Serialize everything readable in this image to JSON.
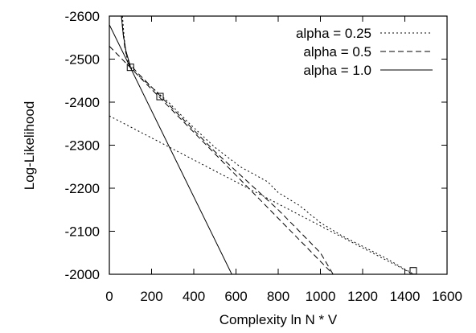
{
  "chart_data": {
    "type": "line",
    "xlabel": "Complexity ln N * V",
    "ylabel": "Log-Likelihood",
    "xlim": [
      0,
      1600
    ],
    "ylim": [
      -2000,
      -2600
    ],
    "xticks": [
      "0",
      "200",
      "400",
      "600",
      "800",
      "1000",
      "1200",
      "1400",
      "1600"
    ],
    "yticks": [
      "-2600",
      "-2500",
      "-2400",
      "-2300",
      "-2200",
      "-2100",
      "-2000"
    ],
    "legend_position": "top-right",
    "series": [
      {
        "name": "alpha = 0.25",
        "dash": "2,3",
        "curve": [
          [
            62,
            -2600
          ],
          [
            70,
            -2550
          ],
          [
            80,
            -2510
          ],
          [
            95,
            -2485
          ],
          [
            130,
            -2465
          ],
          [
            200,
            -2435
          ],
          [
            280,
            -2400
          ],
          [
            380,
            -2350
          ],
          [
            500,
            -2295
          ],
          [
            620,
            -2250
          ],
          [
            750,
            -2215
          ],
          [
            800,
            -2190
          ],
          [
            900,
            -2160
          ],
          [
            1000,
            -2120
          ],
          [
            1100,
            -2090
          ],
          [
            1200,
            -2065
          ],
          [
            1300,
            -2040
          ],
          [
            1400,
            -2012
          ],
          [
            1460,
            -1995
          ]
        ],
        "tangent": [
          [
            0,
            -2368
          ],
          [
            1460,
            -1995
          ]
        ],
        "marker": [
          1440,
          -2008
        ]
      },
      {
        "name": "alpha = 0.5",
        "dash": "7,4",
        "curve": [
          [
            58,
            -2600
          ],
          [
            65,
            -2560
          ],
          [
            75,
            -2520
          ],
          [
            95,
            -2490
          ],
          [
            130,
            -2470
          ],
          [
            180,
            -2445
          ],
          [
            240,
            -2415
          ],
          [
            300,
            -2385
          ],
          [
            400,
            -2335
          ],
          [
            500,
            -2285
          ],
          [
            600,
            -2240
          ],
          [
            700,
            -2195
          ],
          [
            800,
            -2150
          ],
          [
            900,
            -2100
          ],
          [
            1000,
            -2050
          ],
          [
            1060,
            -2000
          ]
        ],
        "tangent": [
          [
            0,
            -2530
          ],
          [
            1060,
            -2000
          ]
        ],
        "marker": [
          240,
          -2413
        ]
      },
      {
        "name": "alpha = 1.0",
        "dash": "",
        "curve": [
          [
            57,
            -2600
          ],
          [
            65,
            -2560
          ],
          [
            78,
            -2520
          ],
          [
            100,
            -2482
          ]
        ],
        "tangent": [
          [
            0,
            -2580
          ],
          [
            580,
            -2000
          ]
        ],
        "marker": [
          100,
          -2481
        ]
      }
    ]
  }
}
